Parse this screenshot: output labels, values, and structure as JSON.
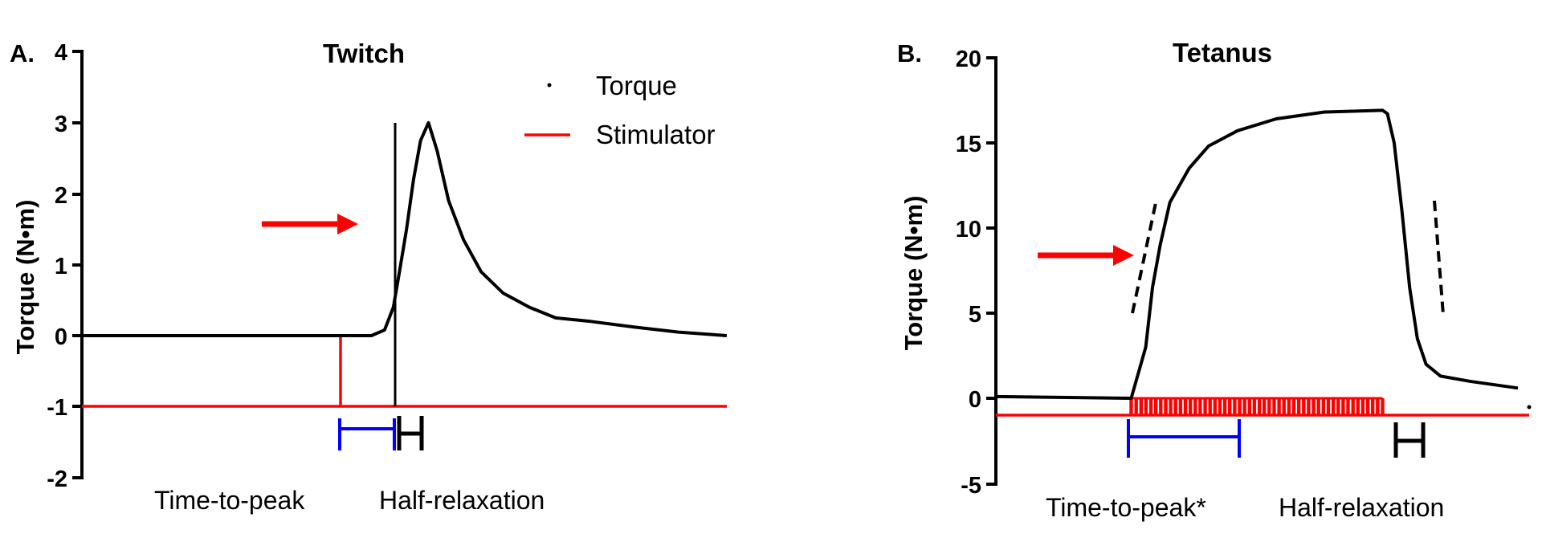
{
  "chart_data": [
    {
      "type": "line",
      "panel_label": "A.",
      "title": "Twitch",
      "ylabel": "Torque (N•m)",
      "ylim": [
        -2,
        4
      ],
      "yticks": [
        "4",
        "3",
        "2",
        "1",
        "0",
        "-1",
        "-2"
      ],
      "legend": {
        "placement": "top-right",
        "entries": [
          "Torque",
          "Stimulator"
        ]
      },
      "annotations": [
        "Time-to-peak",
        "Half-relaxation"
      ],
      "series": [
        {
          "name": "Torque",
          "color": "#000000",
          "x": [
            0,
            330,
            345,
            355,
            362,
            370,
            378,
            386,
            395,
            405,
            418,
            435,
            455,
            480,
            510,
            540,
            580,
            630,
            680,
            735
          ],
          "values": [
            0,
            0,
            0.08,
            0.4,
            0.9,
            1.5,
            2.2,
            2.75,
            3.0,
            2.6,
            1.9,
            1.35,
            0.9,
            0.6,
            0.4,
            0.25,
            0.2,
            0.12,
            0.05,
            0.0
          ]
        },
        {
          "name": "Stimulator",
          "color": "#ff0000",
          "x": [
            0,
            735
          ],
          "values": [
            -1,
            -1
          ]
        }
      ],
      "colors": {
        "torque": "#000000",
        "stimulator": "#ff0000",
        "time_to_peak": "#0000ff",
        "arrow": "#ff0000"
      }
    },
    {
      "type": "line",
      "panel_label": "B.",
      "title": "Tetanus",
      "ylabel": "Torque (N•m)",
      "ylim": [
        -5,
        20
      ],
      "yticks": [
        "20",
        "15",
        "10",
        "5",
        "0",
        "-5"
      ],
      "annotations": [
        "Time-to-peak*",
        "Half-relaxation"
      ],
      "series": [
        {
          "name": "Torque",
          "color": "#000000",
          "x": [
            0,
            140,
            155,
            162,
            170,
            180,
            200,
            220,
            250,
            290,
            340,
            400,
            405,
            412,
            420,
            428,
            436,
            445,
            460,
            490,
            540
          ],
          "values": [
            0.1,
            0,
            3,
            6.5,
            9,
            11.5,
            13.5,
            14.8,
            15.7,
            16.4,
            16.8,
            16.9,
            16.7,
            15,
            11,
            6.5,
            3.5,
            2,
            1.3,
            1.0,
            0.6
          ]
        },
        {
          "name": "Stimulator",
          "color": "#ff0000",
          "x": [
            0,
            540
          ],
          "values": [
            -1,
            -1
          ]
        }
      ],
      "stimulus_train": {
        "start_x": 140,
        "end_x": 400,
        "pulse_count": 52,
        "amplitude": 1
      },
      "colors": {
        "torque": "#000000",
        "stimulator": "#ff0000",
        "time_to_peak": "#0000ff",
        "arrow": "#ff0000"
      }
    }
  ]
}
